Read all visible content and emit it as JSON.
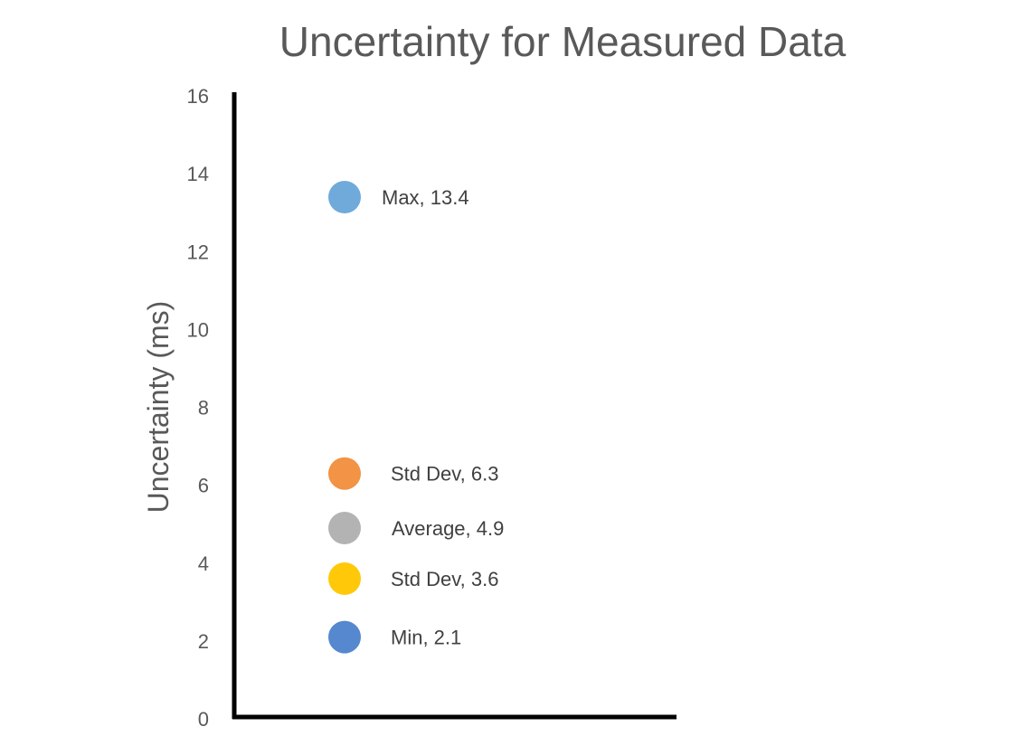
{
  "chart_data": {
    "type": "scatter",
    "title": "Uncertainty for Measured Data",
    "xlabel": "",
    "ylabel": "Uncertainty (ms)",
    "ylim": [
      0,
      16
    ],
    "yticks": [
      0,
      2,
      4,
      6,
      8,
      10,
      12,
      14,
      16
    ],
    "grid": false,
    "legend": "none",
    "points": [
      {
        "label": "Max, 13.4",
        "name": "Max",
        "y": 13.4,
        "color": "#6FAADB"
      },
      {
        "label": "Std Dev, 6.3",
        "name": "Std Dev",
        "y": 6.3,
        "color": "#F29345"
      },
      {
        "label": "Average, 4.9",
        "name": "Average",
        "y": 4.9,
        "color": "#B3B3B3"
      },
      {
        "label": "Std Dev, 3.6",
        "name": "Std Dev",
        "y": 3.6,
        "color": "#FFC909"
      },
      {
        "label": "Min, 2.1",
        "name": "Min",
        "y": 2.1,
        "color": "#5588CF"
      }
    ]
  }
}
